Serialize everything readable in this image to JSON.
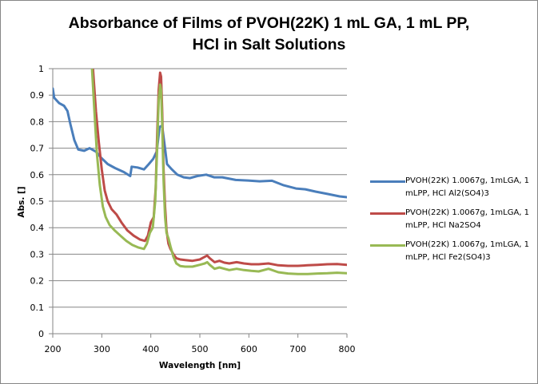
{
  "chart_data": {
    "type": "line",
    "title_lines": [
      "Absorbance of Films of PVOH(22K) 1 mL GA, 1 mL PP,",
      "HCl in Salt Solutions"
    ],
    "title": "Absorbance of Films of PVOH(22K) 1 mL GA, 1 mL PP, HCl in Salt Solutions",
    "xlabel": "Wavelength [nm]",
    "ylabel": "Abs. []",
    "xlim": [
      200,
      800
    ],
    "ylim": [
      0,
      1
    ],
    "xticks": [
      "200",
      "300",
      "400",
      "500",
      "600",
      "700",
      "800"
    ],
    "yticks": [
      "0",
      "0.1",
      "0.2",
      "0.3",
      "0.4",
      "0.5",
      "0.6",
      "0.7",
      "0.8",
      "0.9",
      "1"
    ],
    "grid": "horizontal",
    "legend_position": "right",
    "series": [
      {
        "name": "PVOH(22K) 1.0067g, 1mLGA, 1 mLPP, HCl Al2(SO4)3",
        "legend_lines": [
          "PVOH(22K) 1.0067g, 1mLGA, 1",
          "mLPP, HCl Al2(SO4)3"
        ],
        "color": "#4a7ebb",
        "x": [
          200,
          203,
          213,
          223,
          230,
          236,
          244,
          252,
          264,
          275,
          288,
          298,
          312,
          327,
          345,
          358,
          361,
          373,
          386,
          396,
          405,
          412,
          418,
          423,
          428,
          433,
          443,
          454,
          467,
          480,
          495,
          513,
          529,
          546,
          573,
          598,
          622,
          647,
          671,
          696,
          715,
          736,
          761,
          785,
          800
        ],
        "y": [
          0.925,
          0.89,
          0.87,
          0.86,
          0.84,
          0.79,
          0.73,
          0.695,
          0.69,
          0.7,
          0.687,
          0.665,
          0.64,
          0.625,
          0.61,
          0.595,
          0.63,
          0.627,
          0.62,
          0.64,
          0.66,
          0.687,
          0.78,
          0.785,
          0.715,
          0.64,
          0.62,
          0.6,
          0.59,
          0.587,
          0.595,
          0.6,
          0.59,
          0.59,
          0.58,
          0.578,
          0.575,
          0.577,
          0.56,
          0.548,
          0.545,
          0.536,
          0.527,
          0.518,
          0.515
        ]
      },
      {
        "name": "PVOH(22K) 1.0067g, 1mLGA, 1 mLPP, HCl Na2SO4",
        "legend_lines": [
          "PVOH(22K) 1.0067g, 1mLGA, 1",
          "mLPP, HCl Na2SO4"
        ],
        "color": "#be4b48",
        "x": [
          282,
          288,
          294,
          300,
          306,
          312,
          320,
          330,
          340,
          352,
          365,
          378,
          388,
          394,
          400,
          406,
          410,
          413,
          416,
          419,
          421,
          423,
          426,
          429,
          432,
          436,
          440,
          446,
          452,
          460,
          470,
          485,
          500,
          510,
          515,
          520,
          530,
          540,
          550,
          560,
          575,
          590,
          605,
          620,
          640,
          660,
          680,
          700,
          720,
          740,
          760,
          780,
          800
        ],
        "y": [
          1.0,
          0.84,
          0.72,
          0.62,
          0.54,
          0.5,
          0.47,
          0.45,
          0.42,
          0.39,
          0.37,
          0.355,
          0.35,
          0.37,
          0.42,
          0.44,
          0.55,
          0.75,
          0.92,
          0.985,
          0.97,
          0.85,
          0.62,
          0.48,
          0.39,
          0.34,
          0.32,
          0.3,
          0.285,
          0.28,
          0.278,
          0.275,
          0.28,
          0.29,
          0.295,
          0.285,
          0.27,
          0.275,
          0.268,
          0.265,
          0.27,
          0.265,
          0.262,
          0.262,
          0.265,
          0.258,
          0.256,
          0.256,
          0.258,
          0.26,
          0.262,
          0.263,
          0.26
        ]
      },
      {
        "name": "PVOH(22K) 1.0067g, 1mLGA, 1 mLPP, HCl Fe2(SO4)3",
        "legend_lines": [
          "PVOH(22K) 1.0067g, 1mLGA, 1",
          "mLPP, HCl Fe2(SO4)3"
        ],
        "color": "#98b954",
        "x": [
          280,
          285,
          290,
          296,
          302,
          308,
          316,
          326,
          338,
          350,
          362,
          375,
          386,
          392,
          398,
          404,
          409,
          413,
          416,
          419,
          421,
          423,
          426,
          429,
          432,
          436,
          440,
          446,
          452,
          460,
          470,
          485,
          500,
          510,
          515,
          520,
          530,
          540,
          550,
          560,
          575,
          590,
          605,
          620,
          640,
          660,
          680,
          700,
          720,
          740,
          760,
          780,
          800
        ],
        "y": [
          1.0,
          0.84,
          0.68,
          0.56,
          0.48,
          0.44,
          0.41,
          0.39,
          0.37,
          0.35,
          0.335,
          0.325,
          0.32,
          0.34,
          0.38,
          0.4,
          0.5,
          0.7,
          0.88,
          0.94,
          0.92,
          0.8,
          0.58,
          0.44,
          0.38,
          0.36,
          0.33,
          0.29,
          0.265,
          0.255,
          0.253,
          0.253,
          0.26,
          0.265,
          0.27,
          0.26,
          0.245,
          0.25,
          0.245,
          0.24,
          0.245,
          0.24,
          0.237,
          0.235,
          0.245,
          0.232,
          0.227,
          0.225,
          0.225,
          0.227,
          0.228,
          0.23,
          0.228
        ]
      }
    ]
  }
}
